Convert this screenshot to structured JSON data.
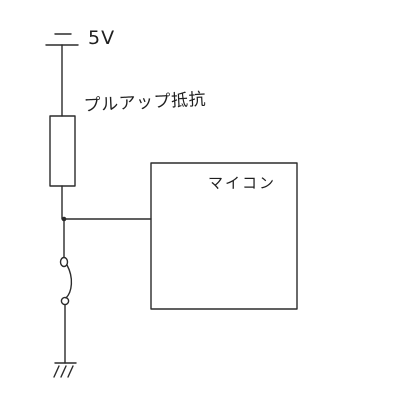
{
  "diagram": {
    "supply_label": "5V",
    "resistor_label": "プルアップ抵抗",
    "mcu_label": "マイコン"
  },
  "colors": {
    "background": "#ffffff",
    "ink": "#2b2b2b"
  }
}
